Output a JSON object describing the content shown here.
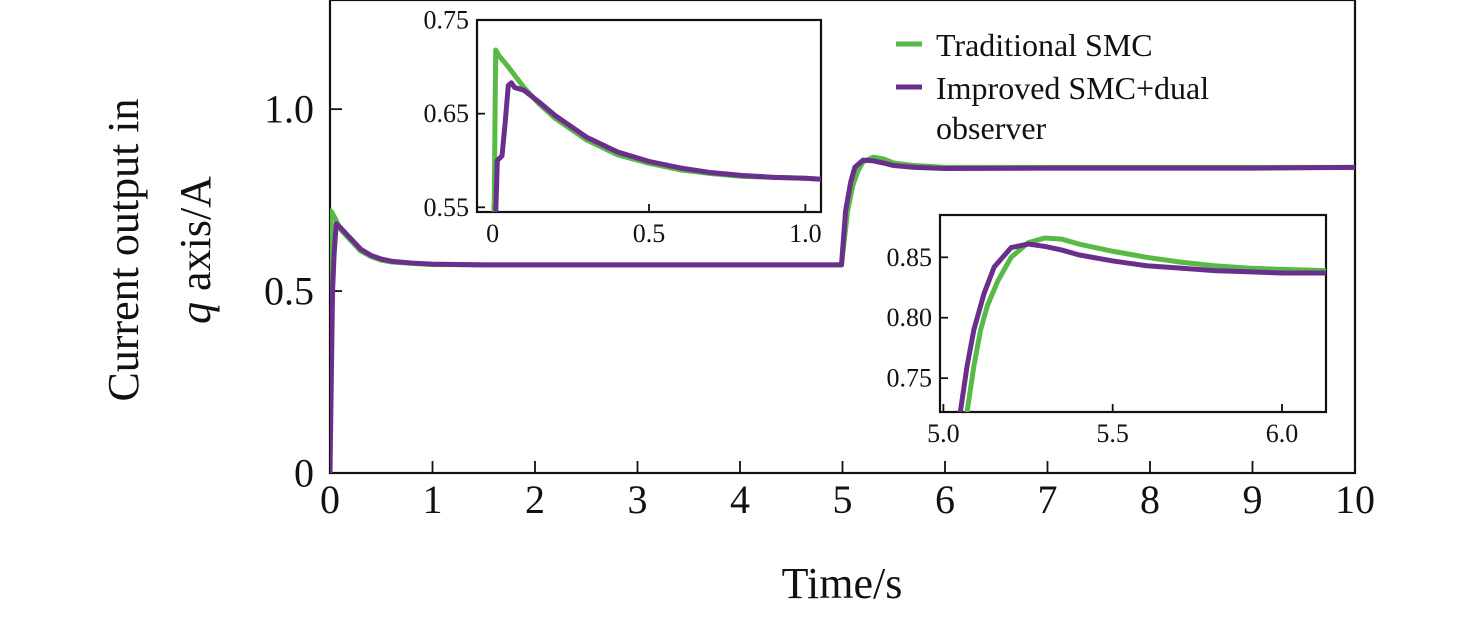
{
  "chart_data": [
    {
      "id": "main",
      "type": "line",
      "title": "",
      "xlabel": "Time/s",
      "ylabel_line1": "Current output in",
      "ylabel_line2_italic": "q",
      "ylabel_line2_rest": " axis/A",
      "xlim": [
        0,
        10
      ],
      "ylim": [
        0,
        1.3
      ],
      "xticks": [
        0,
        1,
        2,
        3,
        4,
        5,
        6,
        7,
        8,
        9,
        10
      ],
      "xtick_labels": [
        "0",
        "1",
        "2",
        "3",
        "4",
        "5",
        "6",
        "7",
        "8",
        "9",
        "10"
      ],
      "yticks": [
        0,
        0.5,
        1.0
      ],
      "ytick_labels": [
        "0",
        "0.5",
        "1.0"
      ],
      "legend_position": "top-right",
      "series": [
        {
          "name": "Traditional SMC",
          "color": "#58b947",
          "points": [
            [
              0,
              0
            ],
            [
              0.005,
              0.55
            ],
            [
              0.01,
              0.72
            ],
            [
              0.05,
              0.7
            ],
            [
              0.1,
              0.67
            ],
            [
              0.2,
              0.64
            ],
            [
              0.3,
              0.61
            ],
            [
              0.4,
              0.595
            ],
            [
              0.5,
              0.585
            ],
            [
              0.6,
              0.58
            ],
            [
              0.8,
              0.576
            ],
            [
              1.0,
              0.573
            ],
            [
              1.5,
              0.572
            ],
            [
              2,
              0.572
            ],
            [
              3,
              0.572
            ],
            [
              4,
              0.572
            ],
            [
              4.99,
              0.572
            ],
            [
              5.05,
              0.72
            ],
            [
              5.1,
              0.79
            ],
            [
              5.15,
              0.83
            ],
            [
              5.2,
              0.855
            ],
            [
              5.3,
              0.868
            ],
            [
              5.4,
              0.863
            ],
            [
              5.5,
              0.852
            ],
            [
              5.7,
              0.845
            ],
            [
              6.0,
              0.84
            ],
            [
              7,
              0.84
            ],
            [
              8,
              0.84
            ],
            [
              9,
              0.84
            ],
            [
              10,
              0.84
            ]
          ]
        },
        {
          "name": "Improved SMC+dual\nobserver",
          "name_lines": [
            "Improved SMC+dual",
            "observer"
          ],
          "color": "#6a2f8c",
          "points": [
            [
              0,
              0
            ],
            [
              0.015,
              0.3
            ],
            [
              0.025,
              0.5
            ],
            [
              0.04,
              0.6
            ],
            [
              0.06,
              0.685
            ],
            [
              0.1,
              0.675
            ],
            [
              0.2,
              0.645
            ],
            [
              0.3,
              0.615
            ],
            [
              0.4,
              0.598
            ],
            [
              0.5,
              0.588
            ],
            [
              0.6,
              0.582
            ],
            [
              0.8,
              0.577
            ],
            [
              1.0,
              0.574
            ],
            [
              1.5,
              0.572
            ],
            [
              2,
              0.572
            ],
            [
              3,
              0.572
            ],
            [
              4,
              0.572
            ],
            [
              4.99,
              0.572
            ],
            [
              5.03,
              0.72
            ],
            [
              5.08,
              0.8
            ],
            [
              5.12,
              0.84
            ],
            [
              5.2,
              0.86
            ],
            [
              5.3,
              0.858
            ],
            [
              5.4,
              0.852
            ],
            [
              5.5,
              0.845
            ],
            [
              5.7,
              0.84
            ],
            [
              6.0,
              0.837
            ],
            [
              7,
              0.838
            ],
            [
              8,
              0.838
            ],
            [
              9,
              0.838
            ],
            [
              10,
              0.84
            ]
          ]
        }
      ]
    },
    {
      "id": "inset-early",
      "type": "line",
      "xlim": [
        -0.05,
        1.05
      ],
      "ylim": [
        0.545,
        0.75
      ],
      "xticks": [
        0,
        0.5,
        1.0
      ],
      "xtick_labels": [
        "0",
        "0.5",
        "1.0"
      ],
      "yticks": [
        0.55,
        0.65,
        0.75
      ],
      "ytick_labels": [
        "0.55",
        "0.65",
        "0.75"
      ],
      "series": [
        {
          "name": "Traditional SMC",
          "color": "#58b947",
          "points": [
            [
              0.005,
              0.545
            ],
            [
              0.008,
              0.66
            ],
            [
              0.01,
              0.718
            ],
            [
              0.02,
              0.712
            ],
            [
              0.05,
              0.7
            ],
            [
              0.1,
              0.678
            ],
            [
              0.15,
              0.66
            ],
            [
              0.2,
              0.645
            ],
            [
              0.3,
              0.622
            ],
            [
              0.4,
              0.606
            ],
            [
              0.5,
              0.597
            ],
            [
              0.6,
              0.59
            ],
            [
              0.7,
              0.586
            ],
            [
              0.8,
              0.583
            ],
            [
              0.9,
              0.582
            ],
            [
              1.0,
              0.581
            ],
            [
              1.05,
              0.58
            ]
          ]
        },
        {
          "name": "Improved SMC+dual observer",
          "color": "#6a2f8c",
          "points": [
            [
              0.01,
              0.545
            ],
            [
              0.015,
              0.6
            ],
            [
              0.03,
              0.605
            ],
            [
              0.04,
              0.64
            ],
            [
              0.05,
              0.68
            ],
            [
              0.06,
              0.683
            ],
            [
              0.07,
              0.678
            ],
            [
              0.1,
              0.675
            ],
            [
              0.15,
              0.662
            ],
            [
              0.2,
              0.648
            ],
            [
              0.3,
              0.625
            ],
            [
              0.4,
              0.609
            ],
            [
              0.5,
              0.599
            ],
            [
              0.6,
              0.592
            ],
            [
              0.7,
              0.587
            ],
            [
              0.8,
              0.584
            ],
            [
              0.9,
              0.582
            ],
            [
              1.0,
              0.581
            ],
            [
              1.05,
              0.58
            ]
          ]
        }
      ]
    },
    {
      "id": "inset-step",
      "type": "line",
      "xlim": [
        4.99,
        6.13
      ],
      "ylim": [
        0.722,
        0.885
      ],
      "xticks": [
        5.0,
        5.5,
        6.0
      ],
      "xtick_labels": [
        "5.0",
        "5.5",
        "6.0"
      ],
      "yticks": [
        0.75,
        0.8,
        0.85
      ],
      "ytick_labels": [
        "0.75",
        "0.80",
        "0.85"
      ],
      "series": [
        {
          "name": "Traditional SMC",
          "color": "#58b947",
          "points": [
            [
              5.07,
              0.722
            ],
            [
              5.09,
              0.76
            ],
            [
              5.11,
              0.79
            ],
            [
              5.13,
              0.81
            ],
            [
              5.16,
              0.83
            ],
            [
              5.2,
              0.85
            ],
            [
              5.25,
              0.862
            ],
            [
              5.3,
              0.866
            ],
            [
              5.35,
              0.865
            ],
            [
              5.4,
              0.861
            ],
            [
              5.5,
              0.855
            ],
            [
              5.6,
              0.85
            ],
            [
              5.7,
              0.846
            ],
            [
              5.8,
              0.843
            ],
            [
              5.9,
              0.841
            ],
            [
              6.0,
              0.84
            ],
            [
              6.13,
              0.839
            ]
          ]
        },
        {
          "name": "Improved SMC+dual observer",
          "color": "#6a2f8c",
          "points": [
            [
              5.05,
              0.722
            ],
            [
              5.07,
              0.76
            ],
            [
              5.09,
              0.79
            ],
            [
              5.12,
              0.82
            ],
            [
              5.15,
              0.842
            ],
            [
              5.2,
              0.858
            ],
            [
              5.25,
              0.861
            ],
            [
              5.3,
              0.859
            ],
            [
              5.35,
              0.856
            ],
            [
              5.4,
              0.852
            ],
            [
              5.5,
              0.847
            ],
            [
              5.6,
              0.843
            ],
            [
              5.7,
              0.841
            ],
            [
              5.8,
              0.839
            ],
            [
              5.9,
              0.838
            ],
            [
              6.0,
              0.837
            ],
            [
              6.13,
              0.837
            ]
          ]
        }
      ]
    }
  ]
}
